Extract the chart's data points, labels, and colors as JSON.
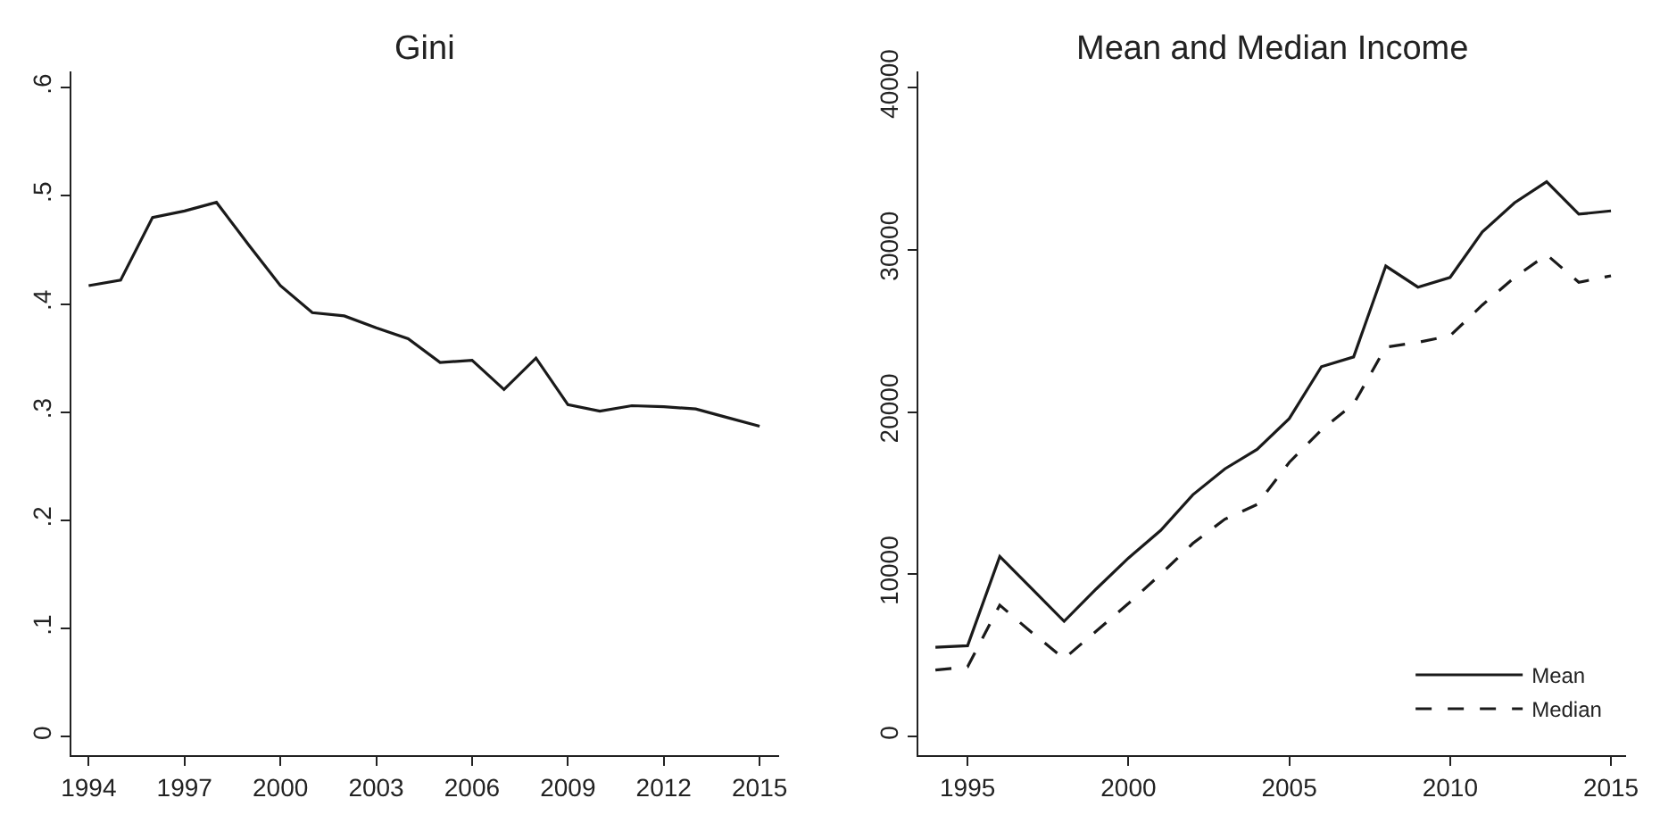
{
  "chart_data": [
    {
      "type": "line",
      "title": "Gini",
      "x": [
        1994,
        1995,
        1996,
        1997,
        1998,
        1999,
        2000,
        2001,
        2002,
        2003,
        2004,
        2005,
        2006,
        2007,
        2008,
        2009,
        2010,
        2011,
        2012,
        2013,
        2014,
        2015
      ],
      "series": [
        {
          "color": "#1a1a1a",
          "line_style": "solid",
          "values": [
            0.417,
            0.422,
            0.48,
            0.486,
            0.494,
            0.455,
            0.417,
            0.392,
            0.389,
            0.378,
            0.368,
            0.346,
            0.348,
            0.321,
            0.35,
            0.307,
            0.301,
            0.306,
            0.305,
            0.303,
            0.295,
            0.287
          ]
        }
      ],
      "xlim": [
        1993.46,
        2015.6
      ],
      "xticks": [
        1994,
        1997,
        2000,
        2003,
        2006,
        2009,
        2012,
        2015
      ],
      "ylim": [
        -0.017,
        0.615
      ],
      "yticks": [
        {
          "value": 0,
          "label": "0"
        },
        {
          "value": 0.1,
          "label": ".1"
        },
        {
          "value": 0.2,
          "label": ".2"
        },
        {
          "value": 0.3,
          "label": ".3"
        },
        {
          "value": 0.4,
          "label": ".4"
        },
        {
          "value": 0.5,
          "label": ".5"
        },
        {
          "value": 0.6,
          "label": ".6"
        }
      ],
      "legend": false
    },
    {
      "type": "line",
      "title": "Mean and Median Income",
      "x": [
        1994,
        1995,
        1996,
        1997,
        1998,
        1999,
        2000,
        2001,
        2002,
        2003,
        2004,
        2005,
        2006,
        2007,
        2008,
        2009,
        2010,
        2011,
        2012,
        2013,
        2014,
        2015
      ],
      "series": [
        {
          "name": "Mean",
          "color": "#1a1a1a",
          "line_style": "solid",
          "values": [
            5500,
            5600,
            11100,
            9100,
            7100,
            9100,
            11000,
            12700,
            14900,
            16500,
            17700,
            19600,
            22800,
            23400,
            29000,
            27700,
            28300,
            31100,
            32900,
            34200,
            32200,
            32400
          ]
        },
        {
          "name": "Median",
          "color": "#1a1a1a",
          "line_style": "dashed",
          "values": [
            4100,
            4300,
            8100,
            6400,
            4800,
            6500,
            8200,
            10000,
            11900,
            13400,
            14300,
            16900,
            18900,
            20500,
            24000,
            24300,
            24700,
            26600,
            28300,
            29700,
            28000,
            28400
          ]
        }
      ],
      "xlim": [
        1993.48,
        2015.47
      ],
      "xticks": [
        1995,
        2000,
        2005,
        2010,
        2015
      ],
      "ylim": [
        -1150,
        41000
      ],
      "yticks": [
        0,
        10000,
        20000,
        30000,
        40000
      ],
      "legend": "bottom right"
    }
  ]
}
